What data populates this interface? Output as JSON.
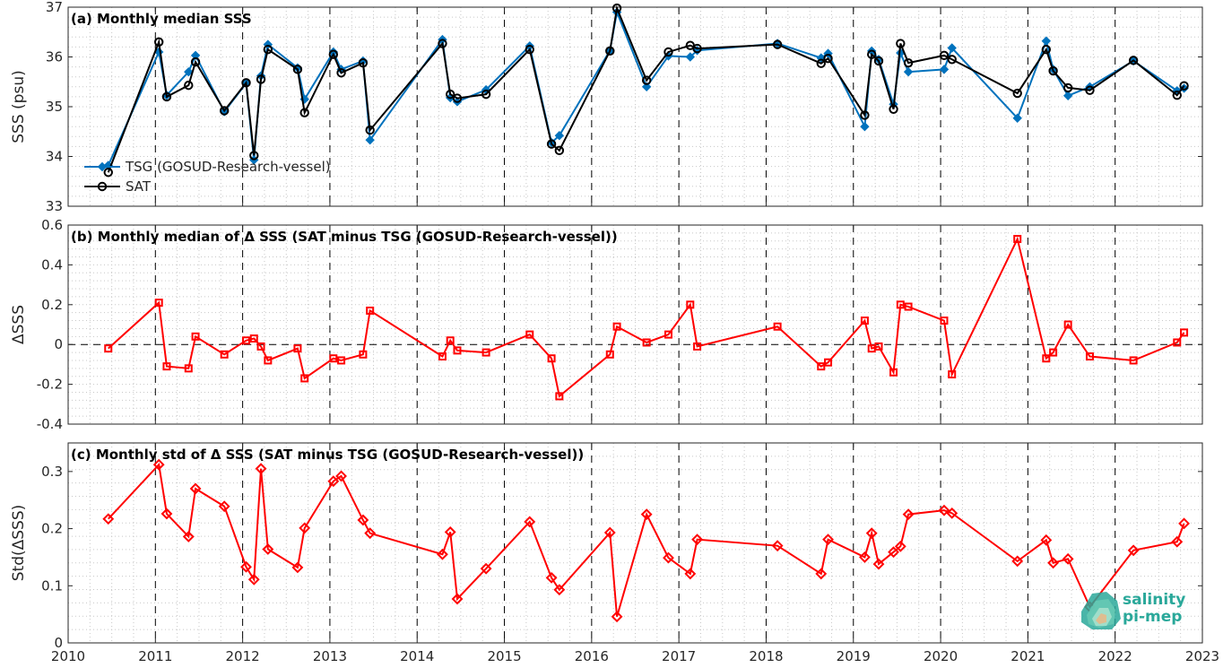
{
  "chart_data": [
    {
      "type": "line",
      "title": "(a) Monthly median SSS",
      "ylabel": "SSS (psu)",
      "xlim": [
        2010,
        2023
      ],
      "ylim": [
        33,
        37
      ],
      "yticks": [
        "33",
        "34",
        "35",
        "36",
        "37"
      ],
      "legend": {
        "position": "lower-left",
        "entries": [
          "TSG (GOSUD-Research-vessel)",
          "SAT"
        ]
      },
      "grid": true,
      "series": [
        {
          "name": "TSG (GOSUD-Research-vessel)",
          "color": "#0072bd",
          "marker": "diamond",
          "x": [
            2010.46,
            2011.04,
            2011.13,
            2011.38,
            2011.46,
            2011.79,
            2012.04,
            2012.13,
            2012.21,
            2012.29,
            2012.63,
            2012.71,
            2013.04,
            2013.13,
            2013.38,
            2013.46,
            2014.29,
            2014.38,
            2014.46,
            2014.79,
            2015.29,
            2015.54,
            2015.63,
            2016.21,
            2016.29,
            2016.63,
            2016.88,
            2017.13,
            2017.21,
            2018.13,
            2018.63,
            2018.71,
            2019.13,
            2019.21,
            2019.29,
            2019.46,
            2019.54,
            2019.63,
            2020.04,
            2020.13,
            2020.88,
            2021.21,
            2021.29,
            2021.46,
            2021.71,
            2022.21,
            2022.71,
            2022.79
          ],
          "y": [
            33.82,
            36.1,
            35.23,
            35.7,
            36.03,
            34.9,
            35.47,
            33.93,
            35.62,
            36.25,
            35.78,
            35.15,
            36.1,
            35.75,
            35.92,
            34.33,
            36.35,
            35.18,
            35.1,
            35.34,
            36.22,
            34.28,
            34.42,
            36.13,
            36.9,
            35.4,
            36.02,
            36.0,
            36.13,
            36.27,
            35.98,
            36.07,
            34.6,
            36.12,
            35.95,
            35.05,
            36.08,
            35.7,
            35.75,
            36.18,
            34.77,
            36.32,
            35.75,
            35.22,
            35.4,
            35.92,
            35.32,
            35.37
          ]
        },
        {
          "name": "SAT",
          "color": "#000000",
          "marker": "circle",
          "x": [
            2010.46,
            2011.04,
            2011.13,
            2011.38,
            2011.46,
            2011.79,
            2012.04,
            2012.13,
            2012.21,
            2012.29,
            2012.63,
            2012.71,
            2013.04,
            2013.13,
            2013.38,
            2013.46,
            2014.29,
            2014.38,
            2014.46,
            2014.79,
            2015.29,
            2015.54,
            2015.63,
            2016.21,
            2016.29,
            2016.63,
            2016.88,
            2017.13,
            2017.21,
            2018.13,
            2018.63,
            2018.71,
            2019.13,
            2019.21,
            2019.29,
            2019.46,
            2019.54,
            2019.63,
            2020.04,
            2020.13,
            2020.88,
            2021.21,
            2021.29,
            2021.46,
            2021.71,
            2022.21,
            2022.71,
            2022.79
          ],
          "y": [
            33.68,
            36.3,
            35.2,
            35.43,
            35.9,
            34.92,
            35.48,
            34.02,
            35.55,
            36.15,
            35.75,
            34.88,
            36.05,
            35.68,
            35.88,
            34.53,
            36.27,
            35.25,
            35.17,
            35.25,
            36.15,
            34.25,
            34.12,
            36.12,
            36.98,
            35.53,
            36.1,
            36.23,
            36.17,
            36.25,
            35.87,
            35.97,
            34.83,
            36.05,
            35.92,
            34.95,
            36.27,
            35.88,
            36.03,
            35.95,
            35.27,
            36.15,
            35.72,
            35.38,
            35.33,
            35.93,
            35.23,
            35.42
          ]
        }
      ]
    },
    {
      "type": "line",
      "title": "(b) Monthly median of Δ SSS (SAT minus TSG (GOSUD-Research-vessel))",
      "ylabel": "ΔSSS",
      "xlim": [
        2010,
        2023
      ],
      "ylim": [
        -0.4,
        0.6
      ],
      "yticks": [
        "-0.4",
        "-0.2",
        "0",
        "0.2",
        "0.4",
        "0.6"
      ],
      "zero_line": true,
      "grid": true,
      "series": [
        {
          "color": "#ff0000",
          "marker": "square",
          "x": [
            2010.46,
            2011.04,
            2011.13,
            2011.38,
            2011.46,
            2011.79,
            2012.04,
            2012.13,
            2012.21,
            2012.29,
            2012.63,
            2012.71,
            2013.04,
            2013.13,
            2013.38,
            2013.46,
            2014.29,
            2014.38,
            2014.46,
            2014.79,
            2015.29,
            2015.54,
            2015.63,
            2016.21,
            2016.29,
            2016.63,
            2016.88,
            2017.13,
            2017.21,
            2018.13,
            2018.63,
            2018.71,
            2019.13,
            2019.21,
            2019.29,
            2019.46,
            2019.54,
            2019.63,
            2020.04,
            2020.13,
            2020.88,
            2021.21,
            2021.29,
            2021.46,
            2021.71,
            2022.21,
            2022.71,
            2022.79
          ],
          "y": [
            -0.02,
            0.21,
            -0.11,
            -0.12,
            0.04,
            -0.05,
            0.02,
            0.03,
            -0.01,
            -0.08,
            -0.02,
            -0.17,
            -0.07,
            -0.08,
            -0.05,
            0.17,
            -0.06,
            0.02,
            -0.03,
            -0.04,
            0.05,
            -0.07,
            -0.26,
            -0.05,
            0.09,
            0.01,
            0.05,
            0.2,
            -0.01,
            0.09,
            -0.11,
            -0.09,
            0.12,
            -0.02,
            -0.01,
            -0.14,
            0.2,
            0.19,
            0.12,
            -0.15,
            0.53,
            -0.07,
            -0.04,
            0.1,
            -0.06,
            -0.08,
            0.01,
            0.06
          ]
        }
      ]
    },
    {
      "type": "line",
      "title": "(c) Monthly std of Δ SSS (SAT minus TSG (GOSUD-Research-vessel))",
      "ylabel": "Std(ΔSSS)",
      "xlim": [
        2010,
        2023
      ],
      "ylim": [
        0,
        0.35
      ],
      "yticks": [
        "0",
        "0.1",
        "0.2",
        "0.3"
      ],
      "xticks": [
        "2010",
        "2011",
        "2012",
        "2013",
        "2014",
        "2015",
        "2016",
        "2017",
        "2018",
        "2019",
        "2020",
        "2021",
        "2022",
        "2023"
      ],
      "grid": true,
      "series": [
        {
          "color": "#ff0000",
          "marker": "diamond",
          "x": [
            2010.46,
            2011.04,
            2011.13,
            2011.38,
            2011.46,
            2011.79,
            2012.04,
            2012.13,
            2012.21,
            2012.29,
            2012.63,
            2012.71,
            2013.04,
            2013.13,
            2013.38,
            2013.46,
            2014.29,
            2014.38,
            2014.46,
            2014.79,
            2015.29,
            2015.54,
            2015.63,
            2016.21,
            2016.29,
            2016.63,
            2016.88,
            2017.13,
            2017.21,
            2018.13,
            2018.63,
            2018.71,
            2019.13,
            2019.21,
            2019.29,
            2019.46,
            2019.54,
            2019.63,
            2020.04,
            2020.13,
            2020.88,
            2021.21,
            2021.29,
            2021.46,
            2021.71,
            2022.21,
            2022.71,
            2022.79
          ],
          "y": [
            0.217,
            0.312,
            0.226,
            0.186,
            0.27,
            0.239,
            0.133,
            0.111,
            0.305,
            0.164,
            0.132,
            0.201,
            0.283,
            0.292,
            0.215,
            0.192,
            0.155,
            0.194,
            0.077,
            0.13,
            0.212,
            0.114,
            0.093,
            0.193,
            0.046,
            0.225,
            0.149,
            0.121,
            0.181,
            0.17,
            0.121,
            0.181,
            0.15,
            0.192,
            0.138,
            0.159,
            0.169,
            0.225,
            0.232,
            0.227,
            0.143,
            0.18,
            0.14,
            0.147,
            0.063,
            0.162,
            0.177,
            0.209
          ]
        }
      ]
    }
  ],
  "logo": {
    "line1": "salinity",
    "line2": "pi-mep"
  }
}
